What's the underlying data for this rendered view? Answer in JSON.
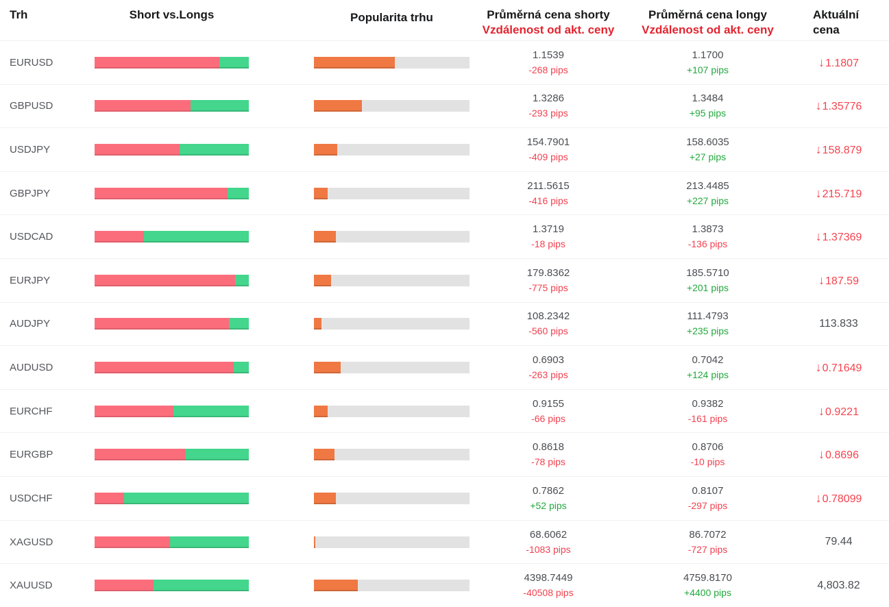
{
  "header": {
    "market": "Trh",
    "short_vs_longs": "Short vs.Longs",
    "popularity": "Popularita trhu",
    "shorts_line1": "Průměrná cena shorty",
    "shorts_line2": "Vzdálenost od akt. ceny",
    "longs_line1": "Průměrná cena longy",
    "longs_line2": "Vzdálenost od akt. ceny",
    "current_line1": "Aktuální",
    "current_line2": "cena"
  },
  "glyphs": {
    "arrow_down": "↓"
  },
  "colors": {
    "bar_short_red": "#fc6d7c",
    "bar_long_green": "#43d68c",
    "bar_popularity_orange": "#ef7843",
    "bar_track_gray": "#e2e2e2",
    "pips_negative": "#f0414f",
    "pips_positive": "#21a83d",
    "price_down_red": "#f5434e",
    "header_red": "#e2242f"
  },
  "rows": [
    {
      "market": "EURUSD",
      "shorts_pct": 81,
      "longs_pct": 19,
      "popularity_pct": 52,
      "short_price": "1.1539",
      "short_pips": "-268 pips",
      "short_pips_dir": "neg",
      "long_price": "1.1700",
      "long_pips": "+107 pips",
      "long_pips_dir": "pos",
      "current_price": "1.1807",
      "current_dir": "down"
    },
    {
      "market": "GBPUSD",
      "shorts_pct": 62,
      "longs_pct": 38,
      "popularity_pct": 31,
      "short_price": "1.3286",
      "short_pips": "-293 pips",
      "short_pips_dir": "neg",
      "long_price": "1.3484",
      "long_pips": "+95 pips",
      "long_pips_dir": "pos",
      "current_price": "1.35776",
      "current_dir": "down"
    },
    {
      "market": "USDJPY",
      "shorts_pct": 55,
      "longs_pct": 45,
      "popularity_pct": 15,
      "short_price": "154.7901",
      "short_pips": "-409 pips",
      "short_pips_dir": "neg",
      "long_price": "158.6035",
      "long_pips": "+27 pips",
      "long_pips_dir": "pos",
      "current_price": "158.879",
      "current_dir": "down"
    },
    {
      "market": "GBPJPY",
      "shorts_pct": 86,
      "longs_pct": 14,
      "popularity_pct": 9,
      "short_price": "211.5615",
      "short_pips": "-416 pips",
      "short_pips_dir": "neg",
      "long_price": "213.4485",
      "long_pips": "+227 pips",
      "long_pips_dir": "pos",
      "current_price": "215.719",
      "current_dir": "down"
    },
    {
      "market": "USDCAD",
      "shorts_pct": 32,
      "longs_pct": 68,
      "popularity_pct": 14,
      "short_price": "1.3719",
      "short_pips": "-18 pips",
      "short_pips_dir": "neg",
      "long_price": "1.3873",
      "long_pips": "-136 pips",
      "long_pips_dir": "neg",
      "current_price": "1.37369",
      "current_dir": "down"
    },
    {
      "market": "EURJPY",
      "shorts_pct": 91,
      "longs_pct": 9,
      "popularity_pct": 11,
      "short_price": "179.8362",
      "short_pips": "-775 pips",
      "short_pips_dir": "neg",
      "long_price": "185.5710",
      "long_pips": "+201 pips",
      "long_pips_dir": "pos",
      "current_price": "187.59",
      "current_dir": "down"
    },
    {
      "market": "AUDJPY",
      "shorts_pct": 87,
      "longs_pct": 13,
      "popularity_pct": 5,
      "short_price": "108.2342",
      "short_pips": "-560 pips",
      "short_pips_dir": "neg",
      "long_price": "111.4793",
      "long_pips": "+235 pips",
      "long_pips_dir": "pos",
      "current_price": "113.833",
      "current_dir": "none"
    },
    {
      "market": "AUDUSD",
      "shorts_pct": 90,
      "longs_pct": 10,
      "popularity_pct": 17,
      "short_price": "0.6903",
      "short_pips": "-263 pips",
      "short_pips_dir": "neg",
      "long_price": "0.7042",
      "long_pips": "+124 pips",
      "long_pips_dir": "pos",
      "current_price": "0.71649",
      "current_dir": "down"
    },
    {
      "market": "EURCHF",
      "shorts_pct": 51,
      "longs_pct": 49,
      "popularity_pct": 9,
      "short_price": "0.9155",
      "short_pips": "-66 pips",
      "short_pips_dir": "neg",
      "long_price": "0.9382",
      "long_pips": "-161 pips",
      "long_pips_dir": "neg",
      "current_price": "0.9221",
      "current_dir": "down"
    },
    {
      "market": "EURGBP",
      "shorts_pct": 59,
      "longs_pct": 41,
      "popularity_pct": 13,
      "short_price": "0.8618",
      "short_pips": "-78 pips",
      "short_pips_dir": "neg",
      "long_price": "0.8706",
      "long_pips": "-10 pips",
      "long_pips_dir": "neg",
      "current_price": "0.8696",
      "current_dir": "down"
    },
    {
      "market": "USDCHF",
      "shorts_pct": 19,
      "longs_pct": 81,
      "popularity_pct": 14,
      "short_price": "0.7862",
      "short_pips": "+52 pips",
      "short_pips_dir": "pos",
      "long_price": "0.8107",
      "long_pips": "-297 pips",
      "long_pips_dir": "neg",
      "current_price": "0.78099",
      "current_dir": "down"
    },
    {
      "market": "XAGUSD",
      "shorts_pct": 49,
      "longs_pct": 51,
      "popularity_pct": 1,
      "short_price": "68.6062",
      "short_pips": "-1083 pips",
      "short_pips_dir": "neg",
      "long_price": "86.7072",
      "long_pips": "-727 pips",
      "long_pips_dir": "neg",
      "current_price": "79.44",
      "current_dir": "none"
    },
    {
      "market": "XAUUSD",
      "shorts_pct": 38,
      "longs_pct": 62,
      "popularity_pct": 28,
      "short_price": "4398.7449",
      "short_pips": "-40508 pips",
      "short_pips_dir": "neg",
      "long_price": "4759.8170",
      "long_pips": "+4400 pips",
      "long_pips_dir": "pos",
      "current_price": "4,803.82",
      "current_dir": "none"
    }
  ]
}
